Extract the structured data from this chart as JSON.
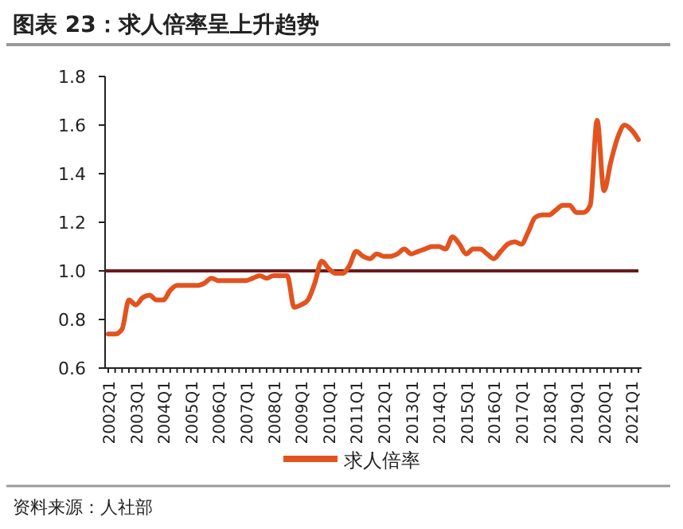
{
  "chart_data": {
    "type": "line",
    "title": "图表 23：求人倍率呈上升趋势",
    "categories": [
      "2002Q1",
      null,
      null,
      null,
      "2003Q1",
      null,
      null,
      null,
      "2004Q1",
      null,
      null,
      null,
      "2005Q1",
      null,
      null,
      null,
      "2006Q1",
      null,
      null,
      null,
      "2007Q1",
      null,
      null,
      null,
      "2008Q1",
      null,
      null,
      null,
      "2009Q1",
      null,
      null,
      null,
      "2010Q1",
      null,
      null,
      null,
      "2011Q1",
      null,
      null,
      null,
      "2012Q1",
      null,
      null,
      null,
      "2013Q1",
      null,
      null,
      null,
      "2014Q1",
      null,
      null,
      null,
      "2015Q1",
      null,
      null,
      null,
      "2016Q1",
      null,
      null,
      null,
      "2017Q1",
      null,
      null,
      null,
      "2018Q1",
      null,
      null,
      null,
      "2019Q1",
      null,
      null,
      null,
      "2020Q1",
      null,
      null,
      null,
      "2021Q1",
      null
    ],
    "series": [
      {
        "name": "求人倍率",
        "color": "#e2531f",
        "values": [
          0.74,
          0.74,
          0.76,
          0.88,
          0.86,
          0.89,
          0.9,
          0.88,
          0.88,
          0.92,
          0.94,
          0.94,
          0.94,
          0.94,
          0.95,
          0.97,
          0.96,
          0.96,
          0.96,
          0.96,
          0.96,
          0.97,
          0.98,
          0.97,
          0.98,
          0.98,
          0.98,
          0.85,
          0.86,
          0.88,
          0.95,
          1.04,
          1.01,
          0.99,
          0.99,
          1.02,
          1.08,
          1.06,
          1.05,
          1.07,
          1.06,
          1.06,
          1.07,
          1.09,
          1.07,
          1.08,
          1.09,
          1.1,
          1.1,
          1.09,
          1.14,
          1.11,
          1.07,
          1.09,
          1.09,
          1.07,
          1.05,
          1.08,
          1.11,
          1.12,
          1.11,
          1.16,
          1.22,
          1.23,
          1.23,
          1.25,
          1.27,
          1.27,
          1.24,
          1.24,
          1.27,
          1.62,
          1.33,
          1.45,
          1.55,
          1.6,
          1.58,
          1.54
        ]
      }
    ],
    "ylim": [
      0.6,
      1.8
    ],
    "yticks": [
      {
        "value": 0.6,
        "label": "0.6"
      },
      {
        "value": 0.8,
        "label": "0.8"
      },
      {
        "value": 1,
        "label": "1.0"
      },
      {
        "value": 1.2,
        "label": "1.2"
      },
      {
        "value": 1.4,
        "label": "1.4"
      },
      {
        "value": 1.6,
        "label": "1.6"
      },
      {
        "value": 1.8,
        "label": "1.8"
      }
    ],
    "ref_lines": [
      {
        "axis": "y",
        "value": 1,
        "color": "#6b1a1a"
      }
    ],
    "legend": "bottom",
    "marker": "none",
    "line_style": "solid",
    "annotations": [
      "资料来源：人社部"
    ]
  }
}
